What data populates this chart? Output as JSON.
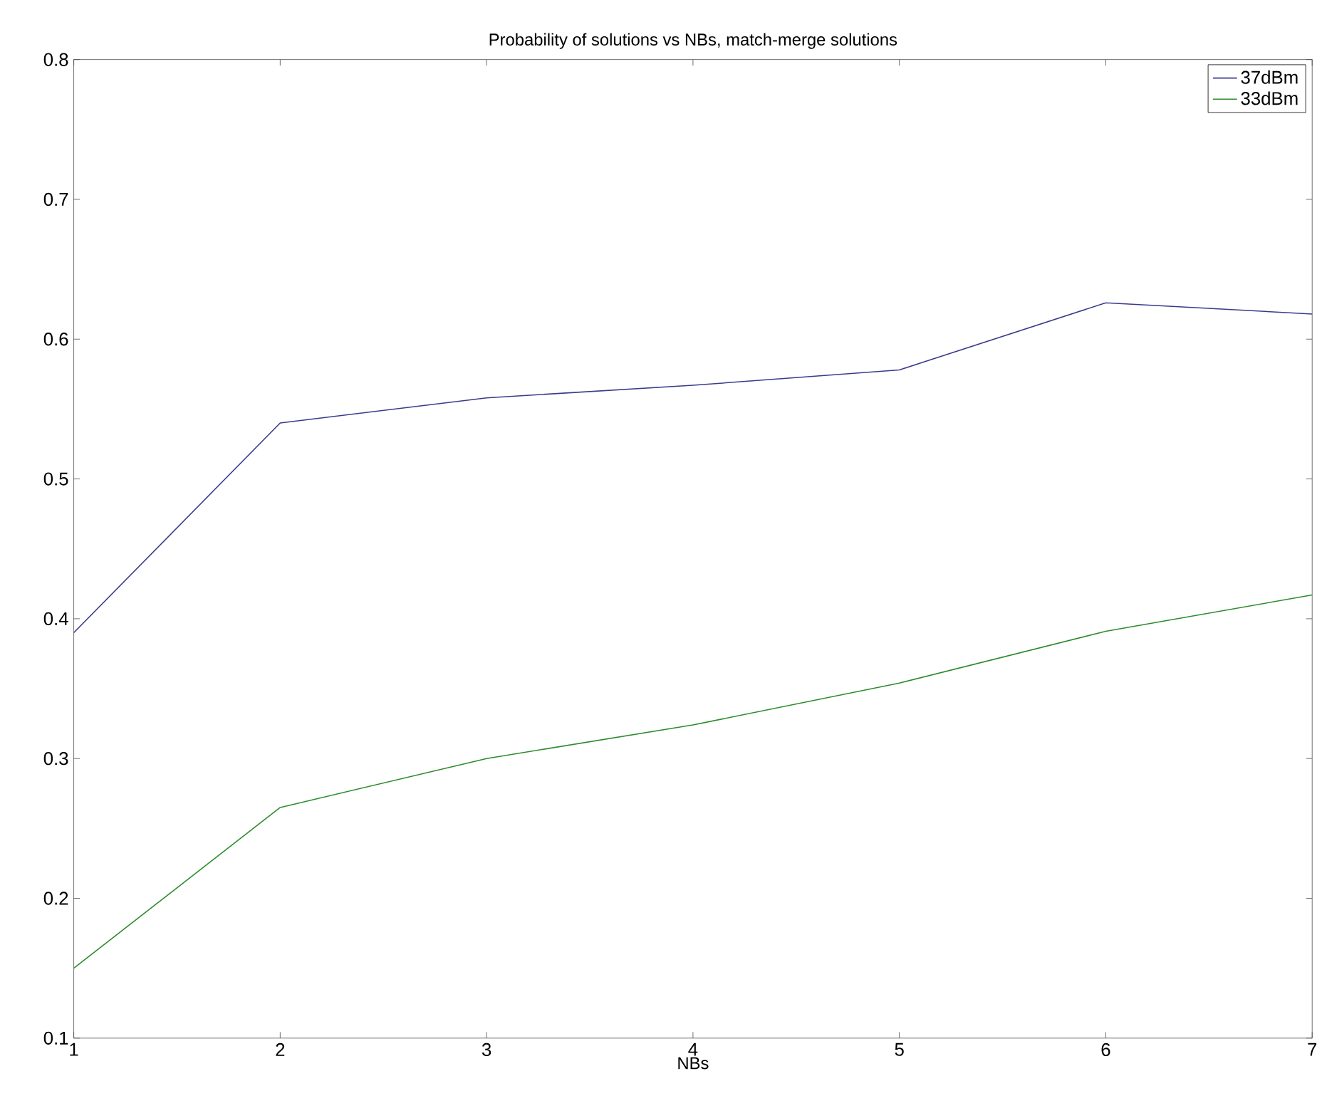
{
  "chart_data": {
    "type": "line",
    "title": "Probability of solutions vs NBs, match-merge solutions",
    "xlabel": "NBs",
    "x": [
      1,
      2,
      3,
      4,
      5,
      6,
      7
    ],
    "series": [
      {
        "name": "37dBm",
        "color": "#3a3a8c",
        "values": [
          0.39,
          0.54,
          0.558,
          0.567,
          0.578,
          0.626,
          0.618
        ]
      },
      {
        "name": "33dBm",
        "color": "#2e8b2e",
        "values": [
          0.15,
          0.265,
          0.3,
          0.324,
          0.354,
          0.391,
          0.417
        ]
      }
    ],
    "xlim": [
      1,
      7
    ],
    "ylim": [
      0.1,
      0.8
    ],
    "xticks": [
      1,
      2,
      3,
      4,
      5,
      6,
      7
    ],
    "yticks": [
      0.1,
      0.2,
      0.3,
      0.4,
      0.5,
      0.6,
      0.7,
      0.8
    ],
    "legend": "top right",
    "grid": false,
    "marker": "none",
    "line_style": "solid"
  }
}
